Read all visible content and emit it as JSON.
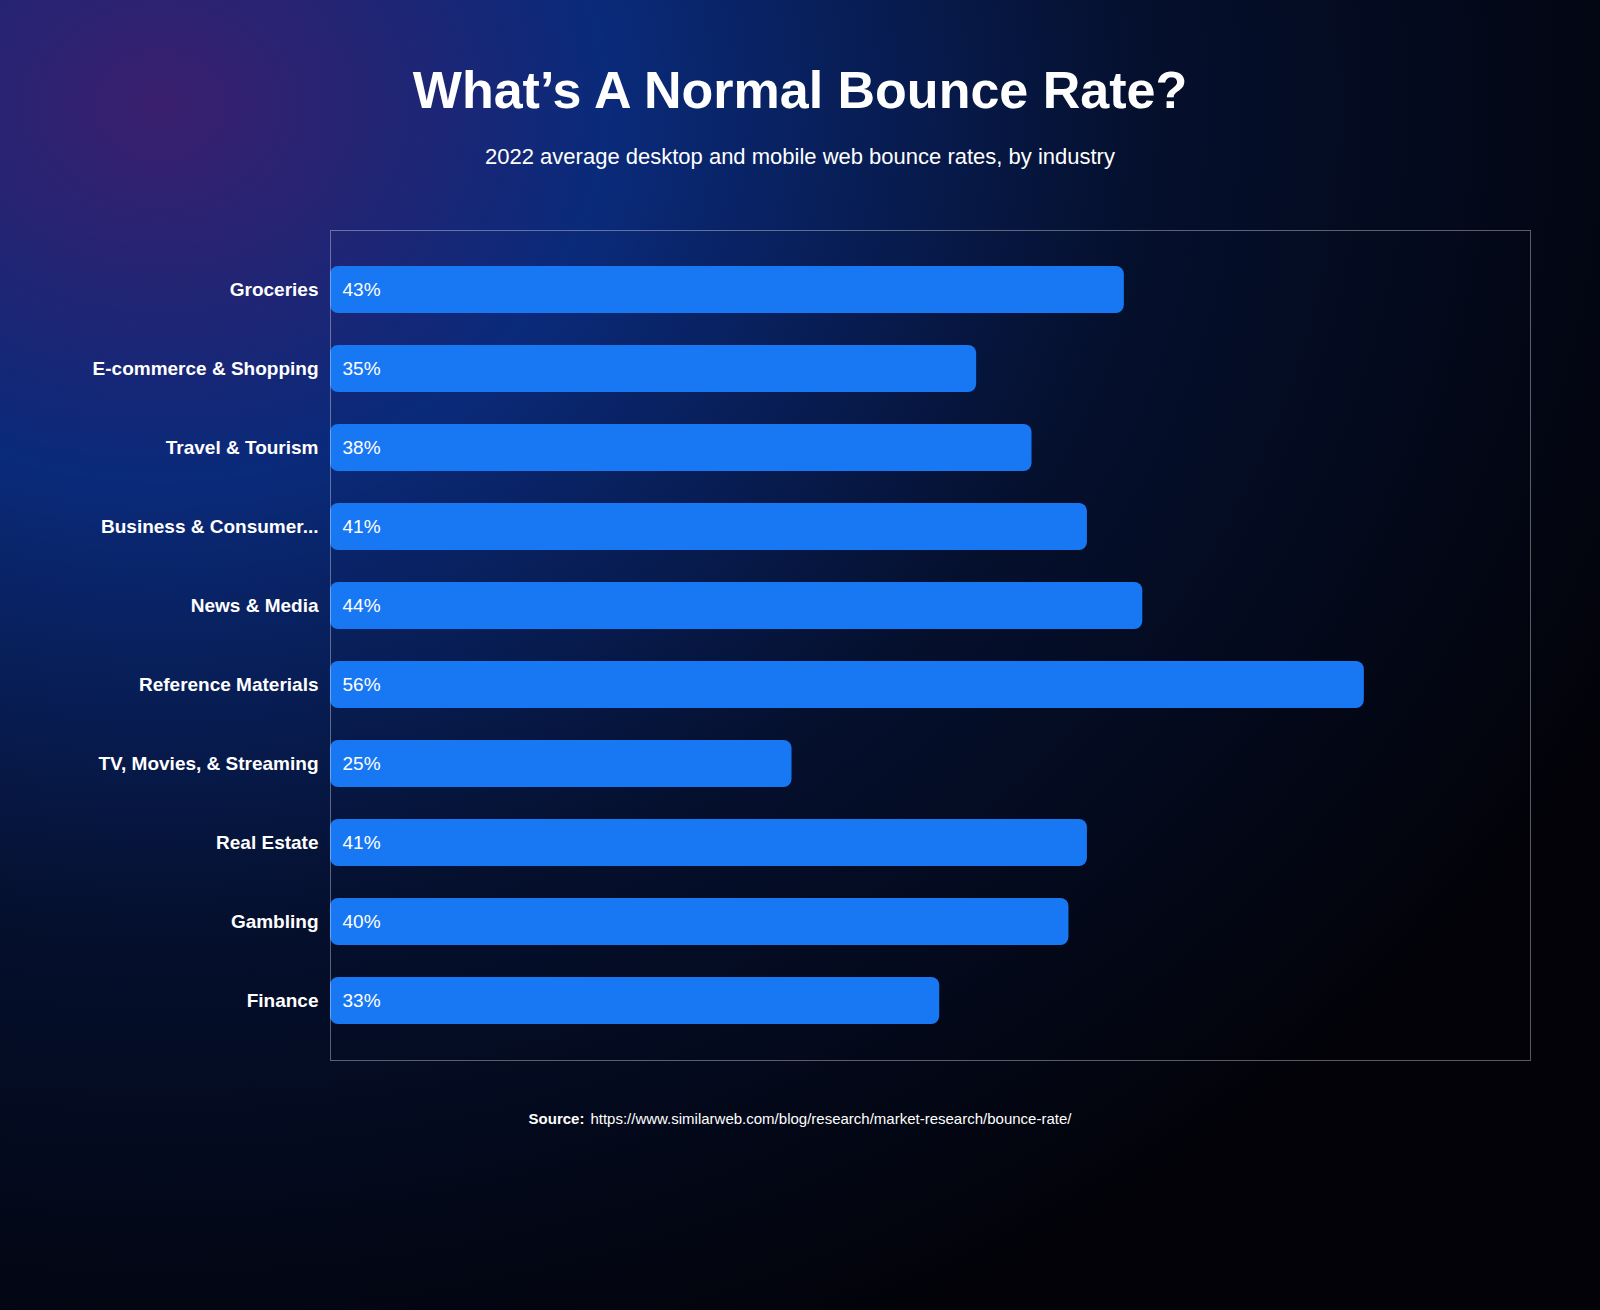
{
  "chart_data": {
    "type": "bar",
    "orientation": "horizontal",
    "title": "What’s A Normal Bounce Rate?",
    "subtitle": "2022 average desktop and mobile web bounce rates, by industry",
    "source_label": "Source:",
    "source_url": "https://www.similarweb.com/blog/research/market-research/bounce-rate/",
    "categories": [
      "Groceries",
      "E-commerce & Shopping",
      "Travel & Tourism",
      "Business & Consumer...",
      "News & Media",
      "Reference Materials",
      "TV, Movies, & Streaming",
      "Real Estate",
      "Gambling",
      "Finance"
    ],
    "values": [
      43,
      35,
      38,
      41,
      44,
      56,
      25,
      41,
      40,
      33
    ],
    "value_labels": [
      "43%",
      "35%",
      "38%",
      "41%",
      "44%",
      "56%",
      "25%",
      "41%",
      "40%",
      "33%"
    ],
    "data_labels": true,
    "color": "#1877F2",
    "xlim": [
      0,
      65
    ],
    "tick_labels": "y",
    "grid": false
  }
}
